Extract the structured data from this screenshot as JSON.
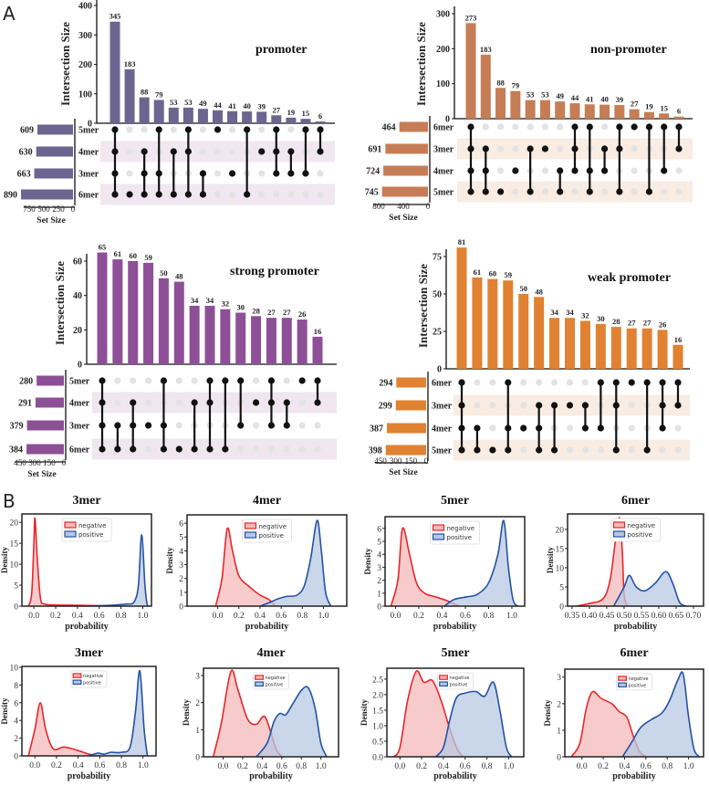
{
  "panel_labels": {
    "a": "A",
    "b": "B"
  },
  "colors": {
    "promoter": "#6b6590",
    "non_promoter": "#c67d55",
    "strong_promoter": "#8d5096",
    "weak_promoter": "#e08232",
    "negative_line": "#e8262a",
    "negative_fill": "#f4b9b9",
    "positive_line": "#2352a8",
    "positive_fill": "#b8c8e2"
  },
  "chart_data": [
    {
      "type": "upset",
      "title": "promoter",
      "ylabel": "Intersection Size",
      "set_size_label": "Set Size",
      "yticks": [
        0,
        100,
        200,
        300,
        400
      ],
      "set_size_ticks": [
        750,
        500,
        250,
        0
      ],
      "sets": [
        "5mer",
        "4mer",
        "3mer",
        "6mer"
      ],
      "set_sizes": [
        609,
        630,
        663,
        890
      ],
      "values": [
        345,
        183,
        88,
        79,
        53,
        53,
        49,
        44,
        41,
        40,
        39,
        27,
        19,
        15,
        6
      ],
      "members": [
        [
          "5mer",
          "4mer",
          "3mer",
          "6mer"
        ],
        [
          "6mer"
        ],
        [
          "4mer",
          "3mer",
          "6mer"
        ],
        [
          "5mer",
          "3mer",
          "6mer"
        ],
        [
          "4mer",
          "6mer"
        ],
        [
          "5mer",
          "4mer",
          "6mer"
        ],
        [
          "3mer",
          "6mer"
        ],
        [
          "5mer"
        ],
        [
          "3mer"
        ],
        [
          "5mer",
          "6mer"
        ],
        [
          "4mer"
        ],
        [
          "5mer",
          "4mer",
          "3mer"
        ],
        [
          "4mer",
          "3mer"
        ],
        [
          "5mer",
          "3mer"
        ],
        [
          "5mer",
          "4mer"
        ]
      ]
    },
    {
      "type": "upset",
      "title": "non-promoter",
      "ylabel": "Intersection Size",
      "set_size_label": "Set Size",
      "yticks": [
        0,
        100,
        200,
        300
      ],
      "set_size_ticks": [
        800,
        400,
        0
      ],
      "sets": [
        "6mer",
        "3mer",
        "4mer",
        "5mer"
      ],
      "set_sizes": [
        464,
        691,
        724,
        745
      ],
      "values": [
        273,
        183,
        88,
        79,
        53,
        53,
        49,
        44,
        41,
        40,
        39,
        27,
        19,
        15,
        6
      ],
      "members": [
        [
          "6mer",
          "3mer",
          "4mer",
          "5mer"
        ],
        [
          "3mer",
          "4mer",
          "5mer"
        ],
        [
          "5mer"
        ],
        [
          "4mer"
        ],
        [
          "3mer",
          "5mer"
        ],
        [
          "3mer"
        ],
        [
          "4mer",
          "5mer"
        ],
        [
          "6mer",
          "3mer",
          "4mer"
        ],
        [
          "6mer",
          "4mer",
          "5mer"
        ],
        [
          "3mer",
          "4mer"
        ],
        [
          "6mer",
          "3mer",
          "5mer"
        ],
        [
          "6mer"
        ],
        [
          "6mer",
          "5mer"
        ],
        [
          "6mer",
          "4mer"
        ],
        [
          "6mer",
          "3mer"
        ]
      ]
    },
    {
      "type": "upset",
      "title": "strong promoter",
      "ylabel": "Intersection Size",
      "set_size_label": "Set Size",
      "yticks": [
        0,
        20,
        40,
        60
      ],
      "set_size_ticks": [
        450,
        300,
        150,
        0
      ],
      "sets": [
        "5mer",
        "4mer",
        "3mer",
        "6mer"
      ],
      "set_sizes": [
        280,
        291,
        379,
        384
      ],
      "values": [
        65,
        61,
        60,
        59,
        50,
        48,
        34,
        34,
        32,
        30,
        28,
        27,
        27,
        26,
        16
      ],
      "members": [
        [
          "5mer",
          "4mer",
          "3mer",
          "6mer"
        ],
        [
          "3mer",
          "6mer"
        ],
        [
          "4mer",
          "3mer",
          "6mer"
        ],
        [
          "3mer"
        ],
        [
          "5mer",
          "3mer",
          "6mer"
        ],
        [
          "6mer"
        ],
        [
          "4mer",
          "6mer"
        ],
        [
          "5mer",
          "4mer",
          "6mer"
        ],
        [
          "5mer",
          "6mer"
        ],
        [
          "5mer",
          "3mer"
        ],
        [
          "4mer"
        ],
        [
          "5mer",
          "4mer",
          "3mer"
        ],
        [
          "4mer",
          "3mer"
        ],
        [
          "5mer"
        ],
        [
          "5mer",
          "4mer"
        ]
      ]
    },
    {
      "type": "upset",
      "title": "weak promoter",
      "ylabel": "Intersection Size",
      "set_size_label": "Set Size",
      "yticks": [
        0,
        25,
        50,
        75
      ],
      "set_size_ticks": [
        450,
        300,
        150,
        0
      ],
      "sets": [
        "6mer",
        "3mer",
        "4mer",
        "5mer"
      ],
      "set_sizes": [
        294,
        299,
        387,
        398
      ],
      "values": [
        81,
        61,
        60,
        59,
        50,
        48,
        34,
        34,
        32,
        30,
        28,
        27,
        27,
        26,
        16
      ],
      "members": [
        [
          "6mer",
          "3mer",
          "4mer",
          "5mer"
        ],
        [
          "4mer",
          "5mer"
        ],
        [
          "5mer"
        ],
        [
          "6mer",
          "4mer",
          "5mer"
        ],
        [
          "4mer"
        ],
        [
          "3mer",
          "4mer",
          "5mer"
        ],
        [
          "3mer",
          "5mer"
        ],
        [
          "3mer"
        ],
        [
          "3mer",
          "4mer"
        ],
        [
          "6mer",
          "4mer"
        ],
        [
          "6mer",
          "3mer",
          "5mer"
        ],
        [
          "6mer"
        ],
        [
          "6mer",
          "5mer"
        ],
        [
          "6mer",
          "3mer",
          "4mer"
        ],
        [
          "6mer",
          "3mer"
        ]
      ]
    },
    {
      "type": "density",
      "title": "3mer",
      "xlabel": "probability",
      "ylabel": "Density",
      "legend": [
        "negative",
        "positive"
      ],
      "legend_position": "top-center",
      "xlim": [
        -0.11,
        1.08
      ],
      "ylim": [
        0,
        22
      ],
      "xticks": [
        "0.0",
        "0.2",
        "0.4",
        "0.6",
        "0.8",
        "1.0"
      ],
      "yticks": [
        "0",
        "5",
        "10",
        "15",
        "20"
      ],
      "negative": [
        [
          -0.05,
          0
        ],
        [
          -0.02,
          3
        ],
        [
          0,
          15
        ],
        [
          0.01,
          21
        ],
        [
          0.03,
          12
        ],
        [
          0.06,
          2
        ],
        [
          0.1,
          0.5
        ],
        [
          0.2,
          0.3
        ],
        [
          0.4,
          0.2
        ],
        [
          0.6,
          0.1
        ],
        [
          0.8,
          0
        ]
      ],
      "positive": [
        [
          0.5,
          0
        ],
        [
          0.7,
          0.2
        ],
        [
          0.85,
          0.5
        ],
        [
          0.92,
          1
        ],
        [
          0.96,
          5
        ],
        [
          0.99,
          17
        ],
        [
          1.02,
          5
        ],
        [
          1.04,
          0.5
        ],
        [
          1.06,
          0
        ]
      ]
    },
    {
      "type": "density",
      "title": "4mer",
      "xlabel": "probability",
      "ylabel": "Density",
      "legend": [
        "negative",
        "positive"
      ],
      "legend_position": "top-center",
      "xlim": [
        -0.29,
        1.22
      ],
      "ylim": [
        0,
        6.6
      ],
      "xticks": [
        "0.0",
        "0.2",
        "0.4",
        "0.6",
        "0.8",
        "1.0"
      ],
      "yticks": [
        "0",
        "1",
        "2",
        "3",
        "4",
        "5",
        "6"
      ],
      "negative": [
        [
          -0.02,
          0
        ],
        [
          0.04,
          2
        ],
        [
          0.09,
          5.6
        ],
        [
          0.14,
          4
        ],
        [
          0.2,
          2.2
        ],
        [
          0.3,
          1.4
        ],
        [
          0.4,
          0.8
        ],
        [
          0.48,
          0.5
        ],
        [
          0.55,
          0
        ]
      ],
      "positive": [
        [
          0.4,
          0
        ],
        [
          0.5,
          0.3
        ],
        [
          0.56,
          0.5
        ],
        [
          0.65,
          0.7
        ],
        [
          0.75,
          0.8
        ],
        [
          0.82,
          1.5
        ],
        [
          0.88,
          3.5
        ],
        [
          0.94,
          6.2
        ],
        [
          0.98,
          4
        ],
        [
          1.02,
          1
        ],
        [
          1.07,
          0
        ]
      ]
    },
    {
      "type": "density",
      "title": "5mer",
      "xlabel": "probability",
      "ylabel": "Density",
      "legend": [
        "negative",
        "positive"
      ],
      "legend_position": "top-center",
      "xlim": [
        -0.09,
        1.11
      ],
      "ylim": [
        0,
        6.9
      ],
      "xticks": [
        "0.0",
        "0.2",
        "0.4",
        "0.6",
        "0.8",
        "1.0"
      ],
      "yticks": [
        "0",
        "1",
        "2",
        "3",
        "4",
        "5",
        "6"
      ],
      "negative": [
        [
          -0.04,
          0
        ],
        [
          0.02,
          2
        ],
        [
          0.06,
          6
        ],
        [
          0.12,
          4
        ],
        [
          0.18,
          1.8
        ],
        [
          0.25,
          1
        ],
        [
          0.35,
          0.7
        ],
        [
          0.45,
          0.4
        ],
        [
          0.55,
          0
        ]
      ],
      "positive": [
        [
          0.42,
          0
        ],
        [
          0.5,
          0.5
        ],
        [
          0.6,
          0.7
        ],
        [
          0.7,
          0.9
        ],
        [
          0.8,
          1.8
        ],
        [
          0.88,
          4
        ],
        [
          0.93,
          6.6
        ],
        [
          0.97,
          3
        ],
        [
          1.01,
          0.5
        ],
        [
          1.05,
          0
        ]
      ]
    },
    {
      "type": "density",
      "title": "6mer",
      "xlabel": "probability",
      "ylabel": "Density",
      "legend": [
        "negative",
        "positive"
      ],
      "legend_position": "top-center",
      "xlim": [
        0.337,
        0.729
      ],
      "ylim": [
        0,
        24
      ],
      "xticks": [
        "0.35",
        "0.40",
        "0.45",
        "0.50",
        "0.55",
        "0.60",
        "0.65",
        "0.70"
      ],
      "yticks": [
        "0",
        "5",
        "10",
        "15",
        "20"
      ],
      "negative": [
        [
          0.36,
          0
        ],
        [
          0.4,
          0.7
        ],
        [
          0.44,
          2
        ],
        [
          0.46,
          7
        ],
        [
          0.475,
          17
        ],
        [
          0.487,
          23
        ],
        [
          0.495,
          14
        ],
        [
          0.5,
          3
        ],
        [
          0.51,
          0
        ]
      ],
      "positive": [
        [
          0.47,
          0
        ],
        [
          0.5,
          5
        ],
        [
          0.515,
          8
        ],
        [
          0.535,
          5
        ],
        [
          0.56,
          4
        ],
        [
          0.59,
          6
        ],
        [
          0.62,
          9
        ],
        [
          0.64,
          6
        ],
        [
          0.66,
          1
        ],
        [
          0.68,
          0
        ]
      ]
    },
    {
      "type": "density",
      "title": "3mer",
      "xlabel": "probability",
      "ylabel": "Density",
      "legend": [
        "negative",
        "positive"
      ],
      "legend_position": "top-center",
      "xlim": [
        -0.12,
        1.12
      ],
      "ylim": [
        0,
        10.1
      ],
      "xticks": [
        "0.0",
        "0.2",
        "0.4",
        "0.6",
        "0.8",
        "1.0"
      ],
      "yticks": [
        "0",
        "2",
        "4",
        "6",
        "8",
        "10"
      ],
      "negative": [
        [
          -0.06,
          0
        ],
        [
          0,
          3
        ],
        [
          0.05,
          6
        ],
        [
          0.1,
          3
        ],
        [
          0.17,
          0.8
        ],
        [
          0.27,
          1
        ],
        [
          0.4,
          0.6
        ],
        [
          0.5,
          0.2
        ],
        [
          0.6,
          0
        ]
      ],
      "positive": [
        [
          0.5,
          0
        ],
        [
          0.58,
          0.3
        ],
        [
          0.64,
          0.2
        ],
        [
          0.7,
          0.4
        ],
        [
          0.8,
          0.4
        ],
        [
          0.88,
          1
        ],
        [
          0.93,
          5
        ],
        [
          0.97,
          9.6
        ],
        [
          1.01,
          3
        ],
        [
          1.04,
          0
        ]
      ]
    },
    {
      "type": "density",
      "title": "4mer",
      "xlabel": "probability",
      "ylabel": "Density",
      "legend": [
        "negative",
        "positive"
      ],
      "legend_position": "top-center",
      "xlim": [
        -0.2,
        1.18
      ],
      "ylim": [
        0,
        3.27
      ],
      "xticks": [
        "0.0",
        "0.2",
        "0.4",
        "0.6",
        "0.8",
        "1.0"
      ],
      "yticks": [
        "0",
        "1",
        "2",
        "3"
      ],
      "negative": [
        [
          -0.1,
          0
        ],
        [
          -0.02,
          1.2
        ],
        [
          0.08,
          3.15
        ],
        [
          0.15,
          2.5
        ],
        [
          0.25,
          1.4
        ],
        [
          0.34,
          1.2
        ],
        [
          0.42,
          1.5
        ],
        [
          0.48,
          1
        ],
        [
          0.54,
          0.3
        ],
        [
          0.6,
          0
        ]
      ],
      "positive": [
        [
          0.34,
          0
        ],
        [
          0.45,
          0.5
        ],
        [
          0.52,
          1.3
        ],
        [
          0.58,
          1.6
        ],
        [
          0.64,
          1.55
        ],
        [
          0.72,
          2
        ],
        [
          0.8,
          2.45
        ],
        [
          0.87,
          2.55
        ],
        [
          0.94,
          1.8
        ],
        [
          1,
          0.5
        ],
        [
          1.06,
          0
        ]
      ]
    },
    {
      "type": "density",
      "title": "5mer",
      "xlabel": "probability",
      "ylabel": "Density",
      "legend": [
        "negative",
        "positive"
      ],
      "legend_position": "top-center",
      "xlim": [
        -0.12,
        1.14
      ],
      "ylim": [
        0,
        2.85
      ],
      "xticks": [
        "0.0",
        "0.2",
        "0.4",
        "0.6",
        "0.8",
        "1.0"
      ],
      "yticks": [
        "0.0",
        "0.5",
        "1.0",
        "1.5",
        "2.0",
        "2.5"
      ],
      "negative": [
        [
          -0.06,
          0
        ],
        [
          0,
          0.3
        ],
        [
          0.07,
          1.8
        ],
        [
          0.15,
          2.75
        ],
        [
          0.22,
          2.4
        ],
        [
          0.3,
          2.45
        ],
        [
          0.38,
          1.8
        ],
        [
          0.45,
          1
        ],
        [
          0.52,
          0.3
        ],
        [
          0.58,
          0
        ]
      ],
      "positive": [
        [
          0.33,
          0
        ],
        [
          0.4,
          0.3
        ],
        [
          0.46,
          1.2
        ],
        [
          0.52,
          1.9
        ],
        [
          0.6,
          2.05
        ],
        [
          0.7,
          2.1
        ],
        [
          0.78,
          1.95
        ],
        [
          0.86,
          2.4
        ],
        [
          0.92,
          1.5
        ],
        [
          0.98,
          0.3
        ],
        [
          1.03,
          0
        ]
      ]
    },
    {
      "type": "density",
      "title": "6mer",
      "xlabel": "probability",
      "ylabel": "Density",
      "legend": [
        "negative",
        "positive"
      ],
      "legend_position": "top-center",
      "xlim": [
        -0.16,
        1.14
      ],
      "ylim": [
        0,
        3.3
      ],
      "xticks": [
        "0.0",
        "0.2",
        "0.4",
        "0.6",
        "0.8",
        "1.0"
      ],
      "yticks": [
        "0",
        "1",
        "2",
        "3"
      ],
      "negative": [
        [
          -0.1,
          0
        ],
        [
          -0.02,
          0.5
        ],
        [
          0.04,
          1.8
        ],
        [
          0.1,
          2.45
        ],
        [
          0.18,
          2.2
        ],
        [
          0.28,
          2
        ],
        [
          0.35,
          1.7
        ],
        [
          0.42,
          1.5
        ],
        [
          0.48,
          0.8
        ],
        [
          0.54,
          0.2
        ],
        [
          0.6,
          0
        ]
      ],
      "positive": [
        [
          0.38,
          0
        ],
        [
          0.46,
          0.5
        ],
        [
          0.55,
          1.1
        ],
        [
          0.65,
          1.4
        ],
        [
          0.75,
          1.65
        ],
        [
          0.82,
          2.1
        ],
        [
          0.9,
          2.9
        ],
        [
          0.95,
          3.1
        ],
        [
          1,
          1.5
        ],
        [
          1.05,
          0.3
        ],
        [
          1.1,
          0
        ]
      ]
    }
  ]
}
